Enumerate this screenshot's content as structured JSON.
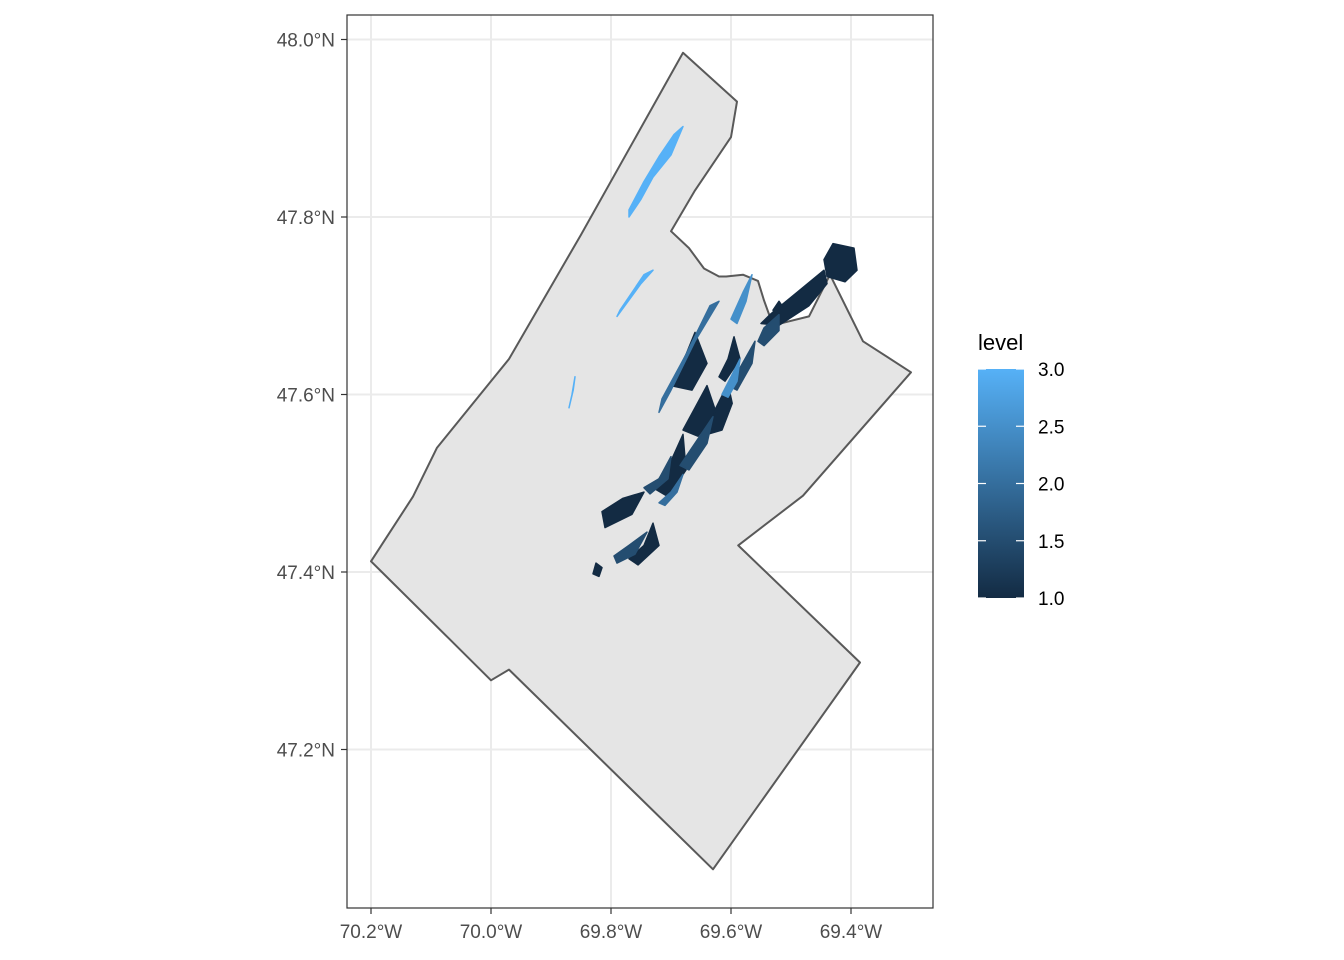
{
  "map": {
    "type": "choropleth-map",
    "x_axis": {
      "ticks": [
        "70.2°W",
        "70.0°W",
        "69.8°W",
        "69.6°W",
        "69.4°W"
      ],
      "tick_values": [
        -70.2,
        -70.0,
        -69.8,
        -69.6,
        -69.4
      ],
      "xlim": [
        -70.22,
        -69.25
      ]
    },
    "y_axis": {
      "ticks": [
        "47.2°N",
        "47.4°N",
        "47.6°N",
        "47.8°N",
        "48.0°N"
      ],
      "tick_values": [
        47.2,
        47.4,
        47.6,
        47.8,
        48.0
      ],
      "ylim": [
        47.03,
        48.03
      ]
    },
    "grid": true,
    "panel_background": "#ffffff",
    "grid_color": "#ebebeb",
    "region": {
      "name": "",
      "fill": "#e5e5e5",
      "stroke": "#595959",
      "boundary_lonlat": [
        [
          -69.68,
          47.985
        ],
        [
          -69.59,
          47.93
        ],
        [
          -69.6,
          47.89
        ],
        [
          -69.66,
          47.83
        ],
        [
          -69.7,
          47.784
        ],
        [
          -69.67,
          47.765
        ],
        [
          -69.645,
          47.742
        ],
        [
          -69.62,
          47.733
        ],
        [
          -69.608,
          47.733
        ],
        [
          -69.58,
          47.735
        ],
        [
          -69.555,
          47.728
        ],
        [
          -69.545,
          47.706
        ],
        [
          -69.53,
          47.678
        ],
        [
          -69.47,
          47.688
        ],
        [
          -69.435,
          47.735
        ],
        [
          -69.38,
          47.66
        ],
        [
          -69.3,
          47.625
        ],
        [
          -69.48,
          47.486
        ],
        [
          -69.588,
          47.43
        ],
        [
          -69.385,
          47.298
        ],
        [
          -69.63,
          47.065
        ],
        [
          -69.97,
          47.29
        ],
        [
          -70.0,
          47.278
        ],
        [
          -70.07,
          47.325
        ],
        [
          -70.2,
          47.412
        ],
        [
          -70.13,
          47.485
        ],
        [
          -70.09,
          47.54
        ],
        [
          -69.97,
          47.64
        ],
        [
          -69.85,
          47.78
        ],
        [
          -69.68,
          47.985
        ]
      ]
    },
    "legend": {
      "title": "level",
      "labels": [
        "3.0",
        "2.5",
        "2.0",
        "1.5",
        "1.0"
      ],
      "values": [
        3.0,
        2.5,
        2.0,
        1.5,
        1.0
      ],
      "color_low": "#132b43",
      "color_high": "#56b1f7",
      "placement": "right"
    },
    "patches": [
      {
        "level": 3.0,
        "lonlat": [
          [
            -69.68,
            47.902
          ],
          [
            -69.7,
            47.87
          ],
          [
            -69.73,
            47.845
          ],
          [
            -69.75,
            47.82
          ],
          [
            -69.77,
            47.8
          ],
          [
            -69.77,
            47.808
          ],
          [
            -69.745,
            47.84
          ],
          [
            -69.72,
            47.868
          ],
          [
            -69.695,
            47.893
          ]
        ]
      },
      {
        "level": 3.0,
        "lonlat": [
          [
            -69.73,
            47.74
          ],
          [
            -69.75,
            47.725
          ],
          [
            -69.79,
            47.688
          ],
          [
            -69.785,
            47.695
          ],
          [
            -69.745,
            47.735
          ]
        ]
      },
      {
        "level": 3.0,
        "lonlat": [
          [
            -69.86,
            47.62
          ],
          [
            -69.865,
            47.6
          ],
          [
            -69.87,
            47.585
          ],
          [
            -69.863,
            47.605
          ]
        ]
      },
      {
        "level": 1.0,
        "lonlat": [
          [
            -69.43,
            47.77
          ],
          [
            -69.395,
            47.765
          ],
          [
            -69.39,
            47.74
          ],
          [
            -69.41,
            47.727
          ],
          [
            -69.44,
            47.733
          ],
          [
            -69.445,
            47.752
          ]
        ]
      },
      {
        "level": 1.0,
        "lonlat": [
          [
            -69.445,
            47.74
          ],
          [
            -69.49,
            47.715
          ],
          [
            -69.535,
            47.69
          ],
          [
            -69.55,
            47.68
          ],
          [
            -69.52,
            47.678
          ],
          [
            -69.47,
            47.7
          ],
          [
            -69.44,
            47.725
          ]
        ]
      },
      {
        "level": 1.0,
        "lonlat": [
          [
            -69.66,
            47.67
          ],
          [
            -69.675,
            47.645
          ],
          [
            -69.7,
            47.61
          ],
          [
            -69.665,
            47.605
          ],
          [
            -69.64,
            47.635
          ]
        ]
      },
      {
        "level": 1.0,
        "lonlat": [
          [
            -69.64,
            47.61
          ],
          [
            -69.66,
            47.585
          ],
          [
            -69.68,
            47.56
          ],
          [
            -69.655,
            47.553
          ],
          [
            -69.625,
            47.58
          ]
        ]
      },
      {
        "level": 1.0,
        "lonlat": [
          [
            -69.68,
            47.555
          ],
          [
            -69.7,
            47.525
          ],
          [
            -69.73,
            47.495
          ],
          [
            -69.705,
            47.485
          ],
          [
            -69.675,
            47.515
          ]
        ]
      },
      {
        "level": 1.0,
        "lonlat": [
          [
            -69.745,
            47.49
          ],
          [
            -69.765,
            47.465
          ],
          [
            -69.81,
            47.45
          ],
          [
            -69.815,
            47.468
          ],
          [
            -69.78,
            47.483
          ]
        ]
      },
      {
        "level": 1.0,
        "lonlat": [
          [
            -69.73,
            47.455
          ],
          [
            -69.745,
            47.43
          ],
          [
            -69.77,
            47.415
          ],
          [
            -69.755,
            47.408
          ],
          [
            -69.72,
            47.43
          ]
        ]
      },
      {
        "level": 1.0,
        "lonlat": [
          [
            -69.595,
            47.665
          ],
          [
            -69.605,
            47.64
          ],
          [
            -69.62,
            47.62
          ],
          [
            -69.61,
            47.615
          ],
          [
            -69.585,
            47.64
          ]
        ]
      },
      {
        "level": 1.0,
        "lonlat": [
          [
            -69.605,
            47.612
          ],
          [
            -69.625,
            47.585
          ],
          [
            -69.64,
            47.555
          ],
          [
            -69.615,
            47.56
          ],
          [
            -69.598,
            47.59
          ]
        ]
      },
      {
        "level": 1.0,
        "lonlat": [
          [
            -69.815,
            47.405
          ],
          [
            -69.82,
            47.395
          ],
          [
            -69.83,
            47.398
          ],
          [
            -69.825,
            47.41
          ]
        ]
      },
      {
        "level": 1.0,
        "lonlat": [
          [
            -69.515,
            47.7
          ],
          [
            -69.525,
            47.69
          ],
          [
            -69.53,
            47.695
          ],
          [
            -69.52,
            47.705
          ]
        ]
      },
      {
        "level": 1.5,
        "lonlat": [
          [
            -69.52,
            47.69
          ],
          [
            -69.545,
            47.675
          ],
          [
            -69.555,
            47.66
          ],
          [
            -69.545,
            47.655
          ],
          [
            -69.52,
            47.672
          ]
        ]
      },
      {
        "level": 1.5,
        "lonlat": [
          [
            -69.56,
            47.66
          ],
          [
            -69.585,
            47.63
          ],
          [
            -69.605,
            47.61
          ],
          [
            -69.59,
            47.605
          ],
          [
            -69.565,
            47.635
          ]
        ]
      },
      {
        "level": 1.5,
        "lonlat": [
          [
            -69.63,
            47.575
          ],
          [
            -69.66,
            47.545
          ],
          [
            -69.685,
            47.52
          ],
          [
            -69.67,
            47.515
          ],
          [
            -69.64,
            47.545
          ]
        ]
      },
      {
        "level": 1.5,
        "lonlat": [
          [
            -69.7,
            47.53
          ],
          [
            -69.72,
            47.505
          ],
          [
            -69.745,
            47.495
          ],
          [
            -69.735,
            47.488
          ],
          [
            -69.705,
            47.505
          ]
        ]
      },
      {
        "level": 1.5,
        "lonlat": [
          [
            -69.74,
            47.445
          ],
          [
            -69.77,
            47.43
          ],
          [
            -69.795,
            47.418
          ],
          [
            -69.79,
            47.41
          ],
          [
            -69.76,
            47.42
          ]
        ]
      },
      {
        "level": 2.0,
        "lonlat": [
          [
            -69.62,
            47.705
          ],
          [
            -69.66,
            47.66
          ],
          [
            -69.7,
            47.605
          ],
          [
            -69.72,
            47.58
          ],
          [
            -69.715,
            47.595
          ],
          [
            -69.675,
            47.645
          ],
          [
            -69.635,
            47.7
          ]
        ]
      },
      {
        "level": 2.0,
        "lonlat": [
          [
            -69.68,
            47.51
          ],
          [
            -69.7,
            47.49
          ],
          [
            -69.72,
            47.478
          ],
          [
            -69.71,
            47.475
          ],
          [
            -69.69,
            47.49
          ]
        ]
      },
      {
        "level": 2.5,
        "lonlat": [
          [
            -69.565,
            47.735
          ],
          [
            -69.58,
            47.715
          ],
          [
            -69.6,
            47.685
          ],
          [
            -69.59,
            47.68
          ],
          [
            -69.575,
            47.705
          ]
        ]
      },
      {
        "level": 2.5,
        "lonlat": [
          [
            -69.585,
            47.64
          ],
          [
            -69.6,
            47.62
          ],
          [
            -69.615,
            47.6
          ],
          [
            -69.605,
            47.597
          ],
          [
            -69.59,
            47.615
          ]
        ]
      }
    ]
  }
}
